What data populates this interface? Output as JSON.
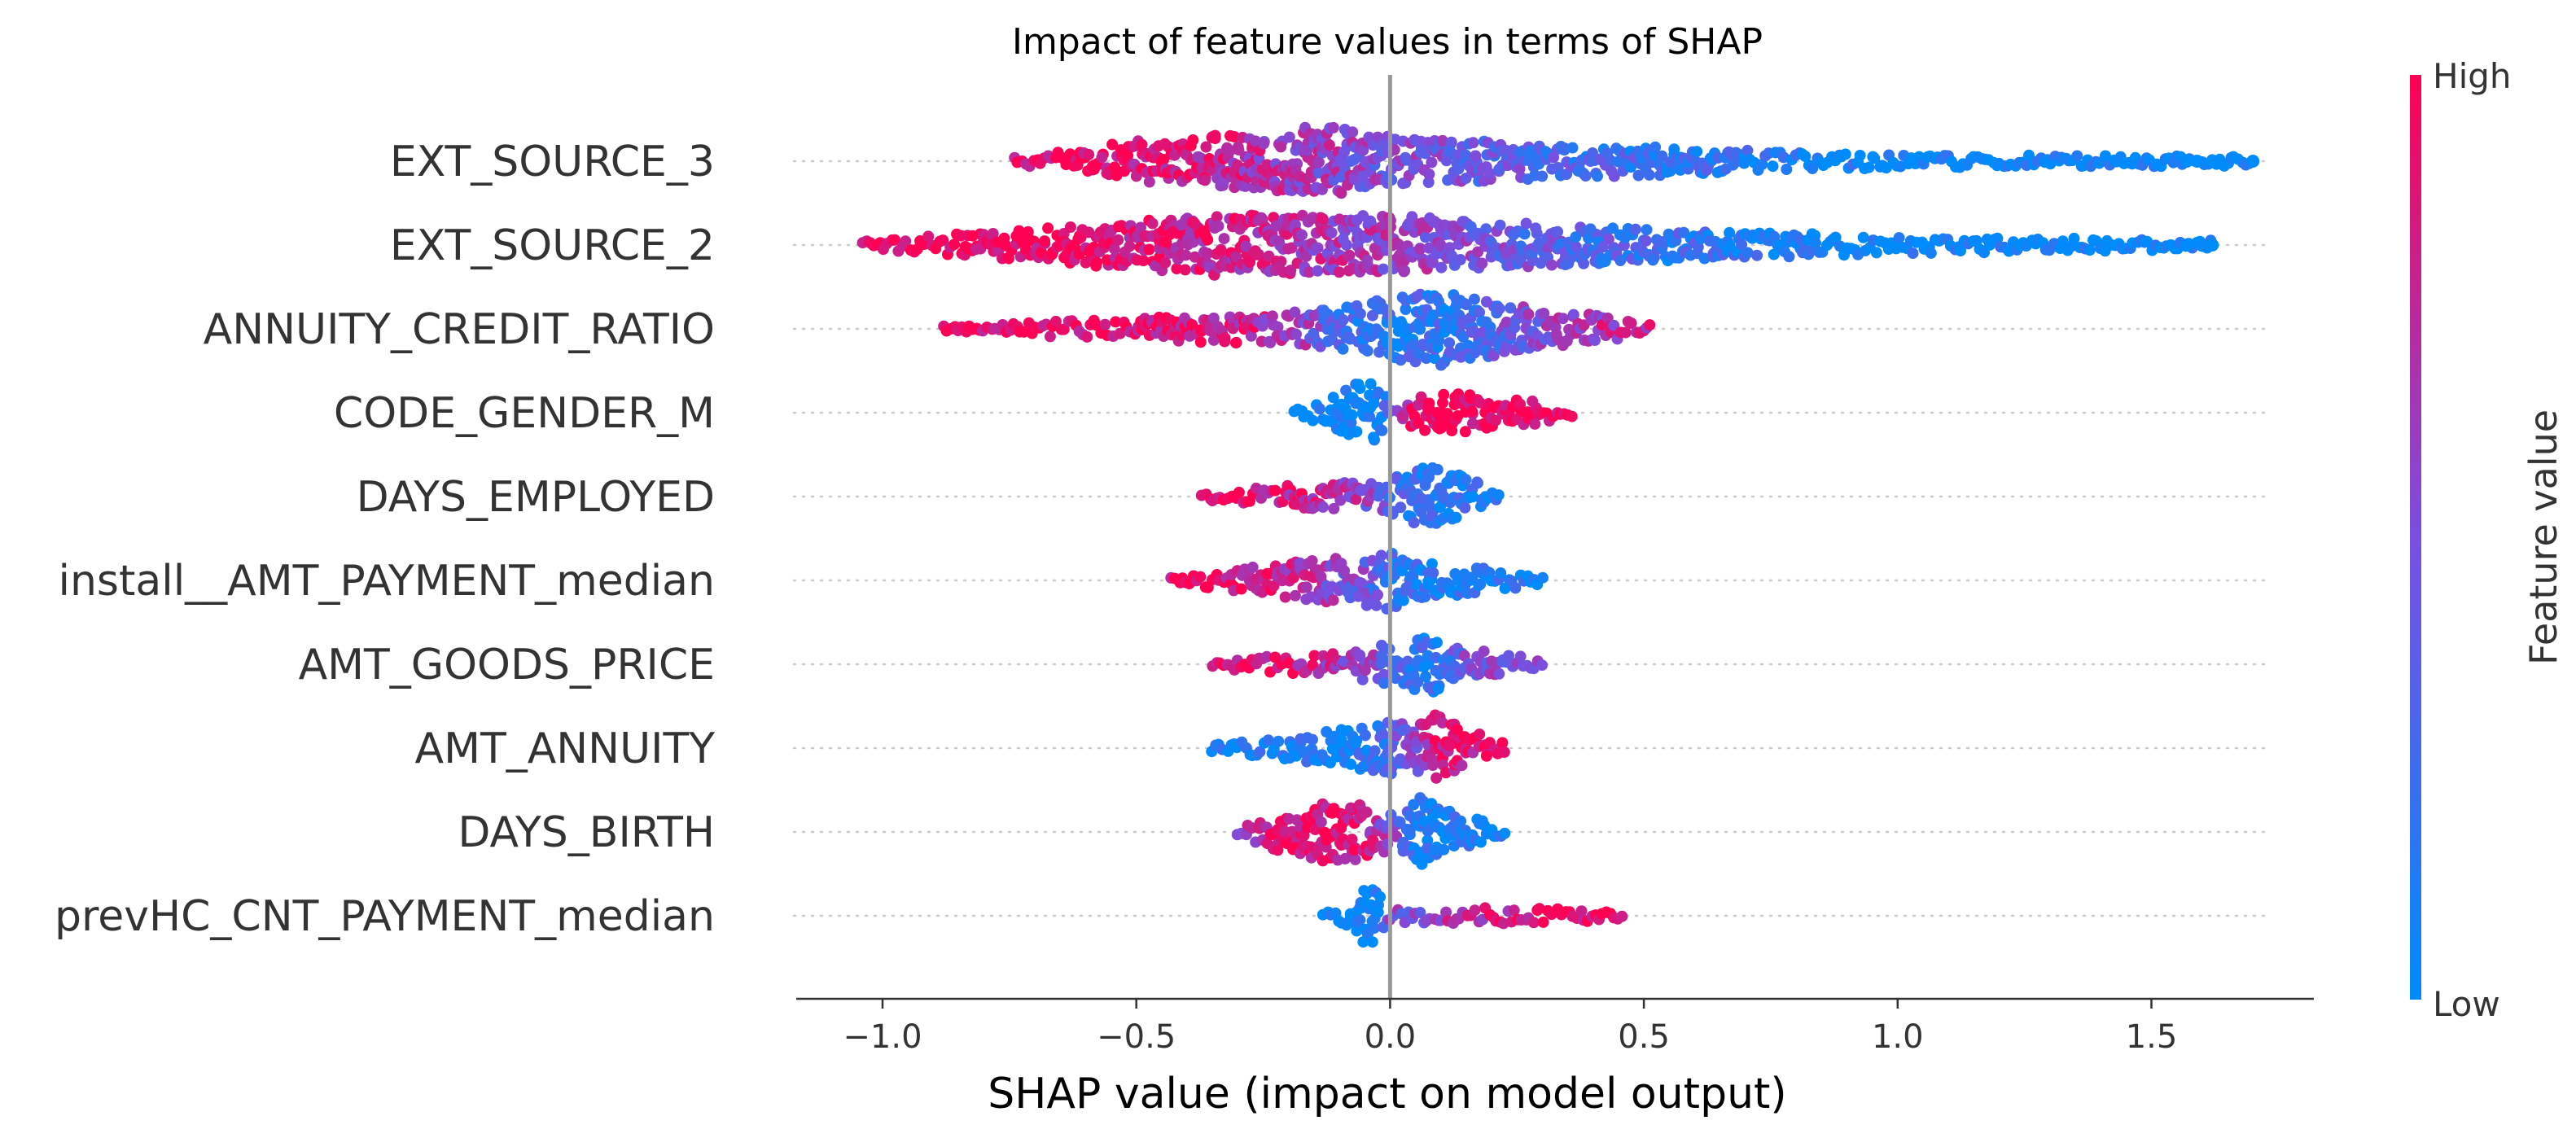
{
  "chart_data": {
    "type": "scatter",
    "subtype": "shap-beeswarm",
    "title": "Impact of feature values in terms of SHAP",
    "xlabel": "SHAP value (impact on model output)",
    "ylabel": "",
    "xlim": [
      -1.17,
      1.82
    ],
    "xticks": [
      -1.0,
      -0.5,
      0.0,
      0.5,
      1.0,
      1.5
    ],
    "xtick_labels": [
      "−1.0",
      "−0.5",
      "0.0",
      "0.5",
      "1.0",
      "1.5"
    ],
    "zero_line": 0.0,
    "grid": "dotted horizontal guide per feature",
    "colorbar": {
      "label": "Feature value",
      "high_label": "High",
      "low_label": "Low",
      "high_color": "#ff0052",
      "low_color": "#008bfb",
      "placement": "right"
    },
    "features": [
      {
        "name": "EXT_SOURCE_3",
        "min": -0.74,
        "max": 1.7,
        "outliers": [
          1.57,
          1.59,
          1.62,
          1.7
        ],
        "profile": [
          [
            -0.74,
            0.1,
            0.95
          ],
          [
            -0.65,
            0.25,
            0.95
          ],
          [
            -0.5,
            0.55,
            0.9
          ],
          [
            -0.35,
            0.7,
            0.82
          ],
          [
            -0.25,
            0.75,
            0.7
          ],
          [
            -0.15,
            1.0,
            0.6
          ],
          [
            -0.05,
            0.8,
            0.55
          ],
          [
            0.05,
            0.6,
            0.48
          ],
          [
            0.15,
            0.55,
            0.42
          ],
          [
            0.25,
            0.55,
            0.35
          ],
          [
            0.35,
            0.45,
            0.3
          ],
          [
            0.5,
            0.4,
            0.22
          ],
          [
            0.7,
            0.3,
            0.12
          ],
          [
            0.9,
            0.22,
            0.05
          ],
          [
            1.1,
            0.18,
            0.0
          ],
          [
            1.3,
            0.16,
            0.0
          ],
          [
            1.52,
            0.14,
            0.0
          ]
        ]
      },
      {
        "name": "EXT_SOURCE_2",
        "min": -1.04,
        "max": 1.62,
        "outliers": [
          1.57,
          1.62
        ],
        "profile": [
          [
            -1.04,
            0.1,
            1.0
          ],
          [
            -0.9,
            0.25,
            1.0
          ],
          [
            -0.7,
            0.45,
            0.97
          ],
          [
            -0.5,
            0.65,
            0.92
          ],
          [
            -0.35,
            0.85,
            0.82
          ],
          [
            -0.2,
            0.85,
            0.72
          ],
          [
            -0.1,
            0.8,
            0.65
          ],
          [
            0.0,
            0.8,
            0.6
          ],
          [
            0.1,
            0.75,
            0.52
          ],
          [
            0.2,
            0.65,
            0.45
          ],
          [
            0.35,
            0.55,
            0.35
          ],
          [
            0.5,
            0.45,
            0.25
          ],
          [
            0.7,
            0.35,
            0.12
          ],
          [
            0.9,
            0.28,
            0.05
          ],
          [
            1.1,
            0.22,
            0.0
          ],
          [
            1.3,
            0.2,
            0.0
          ],
          [
            1.52,
            0.14,
            0.0
          ]
        ]
      },
      {
        "name": "ANNUITY_CREDIT_RATIO",
        "min": -0.88,
        "max": 0.52,
        "outliers": [],
        "profile": [
          [
            -0.88,
            0.1,
            0.95
          ],
          [
            -0.7,
            0.2,
            0.95
          ],
          [
            -0.5,
            0.3,
            0.92
          ],
          [
            -0.35,
            0.38,
            0.85
          ],
          [
            -0.2,
            0.45,
            0.7
          ],
          [
            -0.1,
            0.6,
            0.3
          ],
          [
            0.0,
            0.85,
            0.15
          ],
          [
            0.1,
            1.0,
            0.2
          ],
          [
            0.2,
            0.75,
            0.35
          ],
          [
            0.3,
            0.5,
            0.55
          ],
          [
            0.4,
            0.4,
            0.7
          ],
          [
            0.52,
            0.1,
            0.75
          ]
        ]
      },
      {
        "name": "CODE_GENDER_M",
        "min": -0.19,
        "max": 0.36,
        "outliers": [],
        "profile": [
          [
            -0.19,
            0.08,
            0.0
          ],
          [
            -0.12,
            0.35,
            0.0
          ],
          [
            -0.06,
            0.9,
            0.0
          ],
          [
            -0.02,
            0.7,
            0.02
          ],
          [
            0.0,
            0.2,
            0.5
          ],
          [
            0.05,
            0.45,
            0.95
          ],
          [
            0.12,
            0.6,
            0.98
          ],
          [
            0.22,
            0.4,
            0.98
          ],
          [
            0.3,
            0.3,
            0.97
          ],
          [
            0.36,
            0.1,
            0.97
          ]
        ]
      },
      {
        "name": "DAYS_EMPLOYED",
        "min": -0.37,
        "max": 0.22,
        "outliers": [],
        "profile": [
          [
            -0.37,
            0.1,
            0.95
          ],
          [
            -0.25,
            0.25,
            0.9
          ],
          [
            -0.12,
            0.4,
            0.75
          ],
          [
            -0.03,
            0.4,
            0.5
          ],
          [
            0.03,
            0.7,
            0.25
          ],
          [
            0.08,
            0.95,
            0.15
          ],
          [
            0.14,
            0.6,
            0.12
          ],
          [
            0.22,
            0.1,
            0.1
          ]
        ]
      },
      {
        "name": "install__AMT_PAYMENT_median",
        "min": -0.43,
        "max": 0.3,
        "outliers": [],
        "profile": [
          [
            -0.43,
            0.12,
            0.95
          ],
          [
            -0.3,
            0.35,
            0.9
          ],
          [
            -0.15,
            0.55,
            0.7
          ],
          [
            -0.05,
            0.7,
            0.4
          ],
          [
            0.0,
            0.85,
            0.2
          ],
          [
            0.05,
            0.55,
            0.15
          ],
          [
            0.15,
            0.4,
            0.1
          ],
          [
            0.3,
            0.12,
            0.05
          ]
        ]
      },
      {
        "name": "AMT_GOODS_PRICE",
        "min": -0.35,
        "max": 0.3,
        "outliers": [],
        "profile": [
          [
            -0.35,
            0.12,
            0.95
          ],
          [
            -0.2,
            0.25,
            0.9
          ],
          [
            -0.08,
            0.35,
            0.6
          ],
          [
            -0.02,
            0.55,
            0.45
          ],
          [
            0.03,
            0.6,
            0.3
          ],
          [
            0.07,
            0.85,
            0.1
          ],
          [
            0.12,
            0.55,
            0.35
          ],
          [
            0.2,
            0.35,
            0.55
          ],
          [
            0.3,
            0.12,
            0.6
          ]
        ]
      },
      {
        "name": "AMT_ANNUITY",
        "min": -0.35,
        "max": 0.23,
        "outliers": [],
        "profile": [
          [
            -0.35,
            0.1,
            0.05
          ],
          [
            -0.2,
            0.3,
            0.05
          ],
          [
            -0.08,
            0.55,
            0.1
          ],
          [
            0.0,
            0.75,
            0.25
          ],
          [
            0.05,
            0.6,
            0.55
          ],
          [
            0.09,
            0.95,
            0.9
          ],
          [
            0.15,
            0.55,
            0.9
          ],
          [
            0.23,
            0.12,
            0.9
          ]
        ]
      },
      {
        "name": "DAYS_BIRTH",
        "min": -0.3,
        "max": 0.23,
        "outliers": [],
        "profile": [
          [
            -0.3,
            0.12,
            0.7
          ],
          [
            -0.2,
            0.6,
            0.88
          ],
          [
            -0.1,
            0.9,
            0.92
          ],
          [
            -0.03,
            0.6,
            0.75
          ],
          [
            0.02,
            0.5,
            0.35
          ],
          [
            0.06,
            0.95,
            0.15
          ],
          [
            0.12,
            0.6,
            0.1
          ],
          [
            0.23,
            0.1,
            0.05
          ]
        ]
      },
      {
        "name": "prevHC_CNT_PAYMENT_median",
        "min": -0.13,
        "max": 0.46,
        "outliers": [],
        "profile": [
          [
            -0.13,
            0.1,
            0.0
          ],
          [
            -0.08,
            0.35,
            0.0
          ],
          [
            -0.05,
            0.85,
            0.0
          ],
          [
            -0.02,
            0.6,
            0.05
          ],
          [
            0.0,
            0.2,
            0.45
          ],
          [
            0.1,
            0.2,
            0.65
          ],
          [
            0.2,
            0.22,
            0.8
          ],
          [
            0.3,
            0.22,
            0.92
          ],
          [
            0.4,
            0.18,
            0.97
          ],
          [
            0.46,
            0.08,
            0.97
          ]
        ]
      }
    ]
  }
}
